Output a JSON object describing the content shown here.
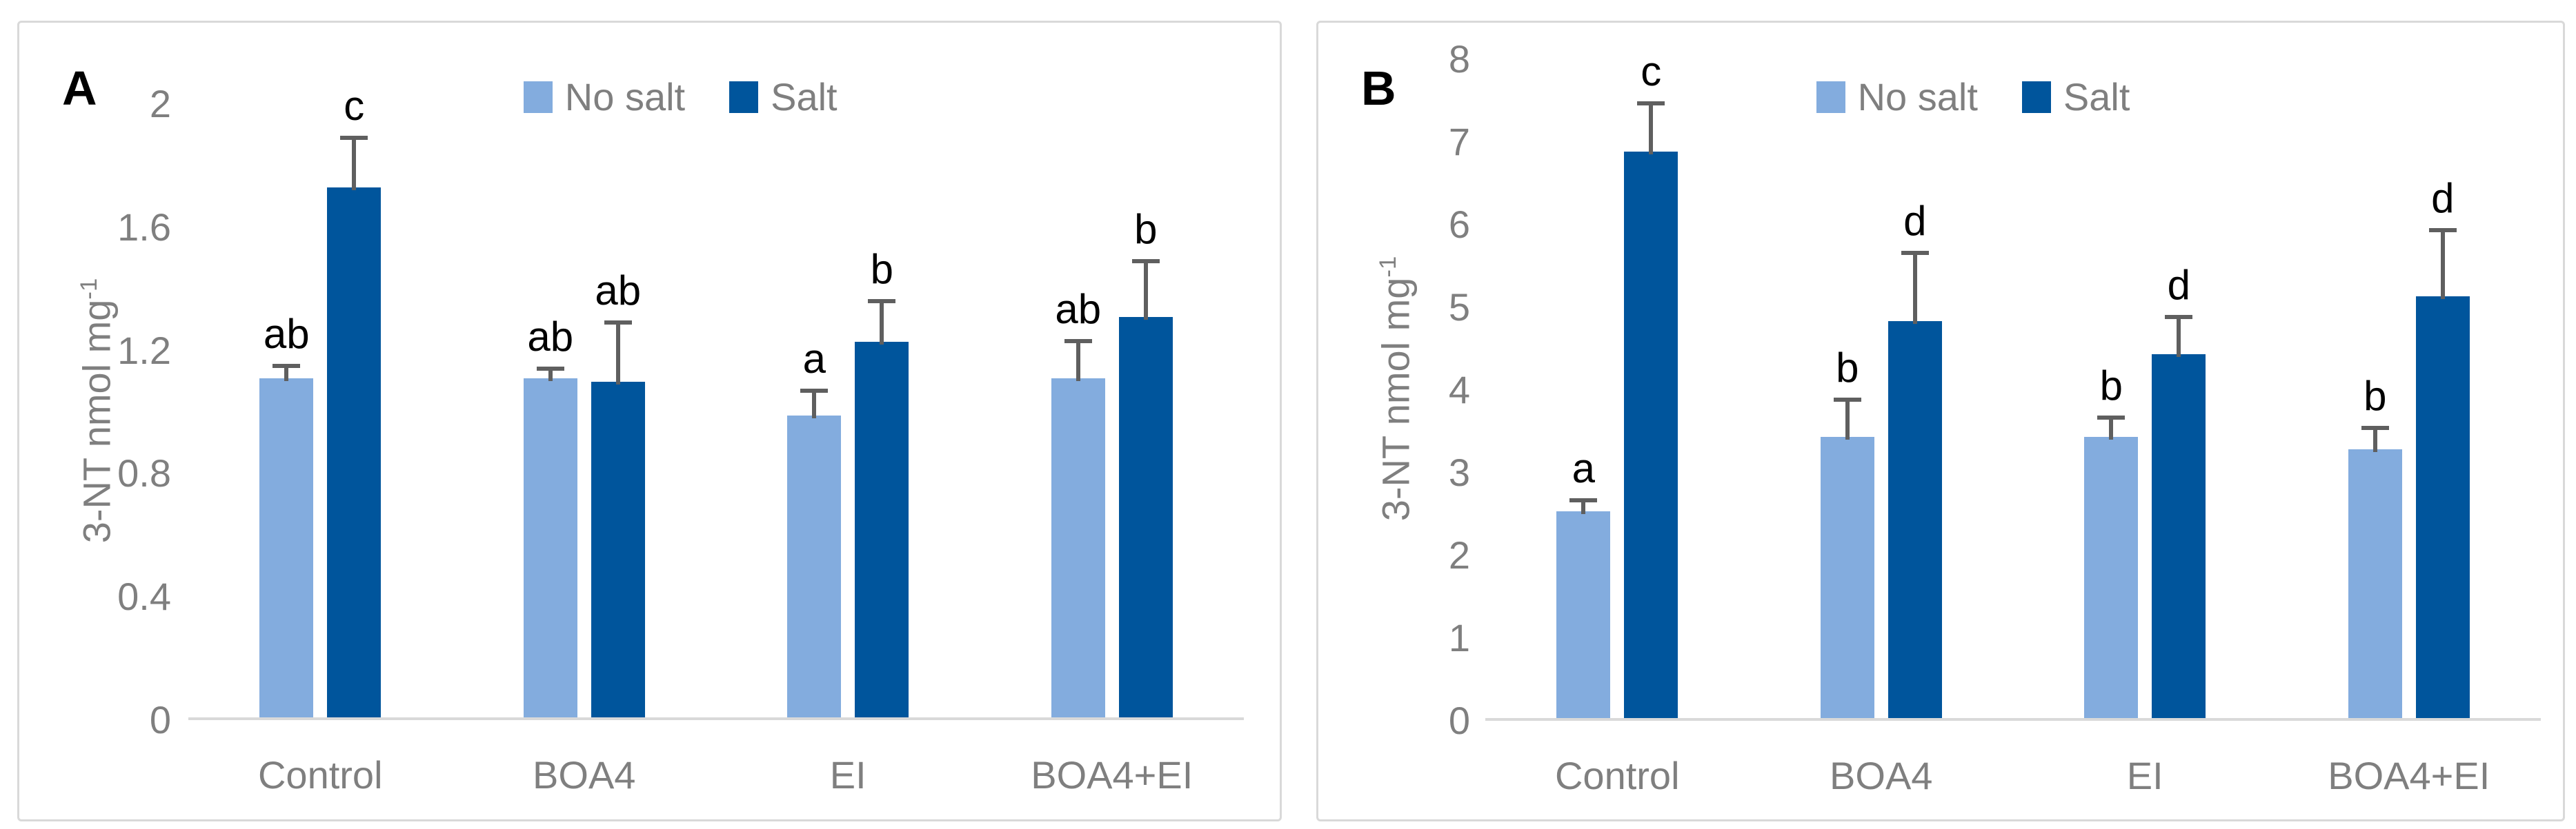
{
  "figure": {
    "panel_a_letter": "A",
    "panel_b_letter": "B"
  },
  "legend": {
    "items": [
      {
        "label": "No salt",
        "color": "#83ACDE"
      },
      {
        "label": "Salt",
        "color": "#00559C"
      }
    ]
  },
  "colors": {
    "no_salt_bar": "#83ACDE",
    "salt_bar": "#00559C",
    "error_bar": "#5F5F5F",
    "axis_text": "#7F7F7F",
    "sig_letter": "#000000",
    "baseline": "#D9D9D9",
    "panel_border": "#D9D9D9"
  },
  "chart_data": [
    {
      "type": "bar",
      "panel": "A",
      "ylabel": {
        "text": "3-NT nmol mg",
        "sup": "-1"
      },
      "ylim": [
        0,
        2
      ],
      "ytick_step": 0.4,
      "ytick_labels": [
        "0",
        "0.4",
        "0.8",
        "1.2",
        "1.6",
        "2"
      ],
      "grid": false,
      "legend_position": "top-center",
      "categories": [
        "Control",
        "BOA4",
        "EI",
        "BOA4+EI"
      ],
      "series": [
        {
          "name": "No salt",
          "values": [
            1.1,
            1.1,
            0.98,
            1.1
          ],
          "errors": [
            0.05,
            0.04,
            0.09,
            0.13
          ],
          "sig_letters": [
            "ab",
            "ab",
            "a",
            "ab"
          ]
        },
        {
          "name": "Salt",
          "values": [
            1.72,
            1.09,
            1.22,
            1.3
          ],
          "errors": [
            0.17,
            0.2,
            0.14,
            0.19
          ],
          "sig_letters": [
            "c",
            "ab",
            "b",
            "b"
          ]
        }
      ]
    },
    {
      "type": "bar",
      "panel": "B",
      "ylabel": {
        "text": "3-NT nmol mg",
        "sup": "-1"
      },
      "ylim": [
        0,
        8
      ],
      "ytick_step": 1,
      "ytick_labels": [
        "0",
        "1",
        "2",
        "3",
        "4",
        "5",
        "6",
        "7",
        "8"
      ],
      "grid": false,
      "legend_position": "top-center",
      "categories": [
        "Control",
        "BOA4",
        "EI",
        "BOA4+EI"
      ],
      "series": [
        {
          "name": "No salt",
          "values": [
            2.5,
            3.4,
            3.4,
            3.25
          ],
          "errors": [
            0.17,
            0.48,
            0.27,
            0.29
          ],
          "sig_letters": [
            "a",
            "b",
            "b",
            "b"
          ]
        },
        {
          "name": "Salt",
          "values": [
            6.85,
            4.8,
            4.4,
            5.1
          ],
          "errors": [
            0.62,
            0.86,
            0.48,
            0.83
          ],
          "sig_letters": [
            "c",
            "d",
            "d",
            "d"
          ]
        }
      ]
    }
  ]
}
